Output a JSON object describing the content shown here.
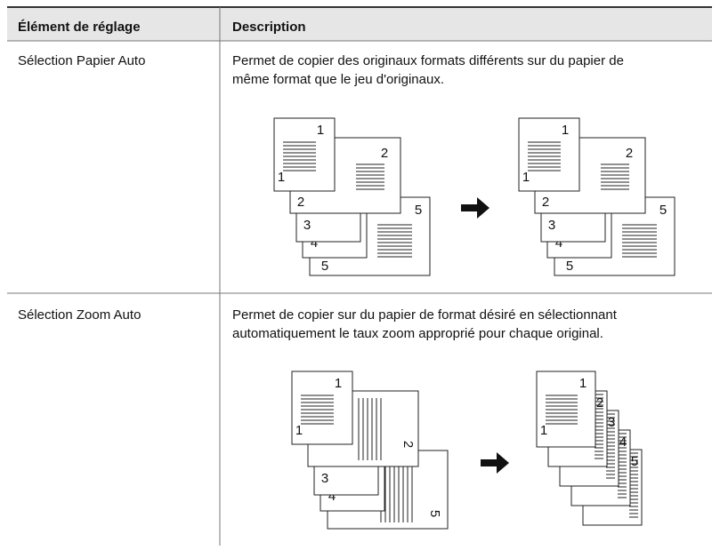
{
  "header": {
    "col1": "Élément de réglage",
    "col2": "Description"
  },
  "rows": [
    {
      "item": "Sélection Papier Auto",
      "description": [
        "Permet de copier des originaux formats différents sur du papier de",
        "même format que le jeu d'originaux."
      ]
    },
    {
      "item": "Sélection Zoom Auto",
      "description": [
        "Permet de copier sur du papier de format désiré en sélectionnant",
        "automatiquement le taux zoom approprié pour chaque original."
      ]
    }
  ],
  "figure_labels": [
    "1",
    "2",
    "3",
    "4",
    "5"
  ]
}
